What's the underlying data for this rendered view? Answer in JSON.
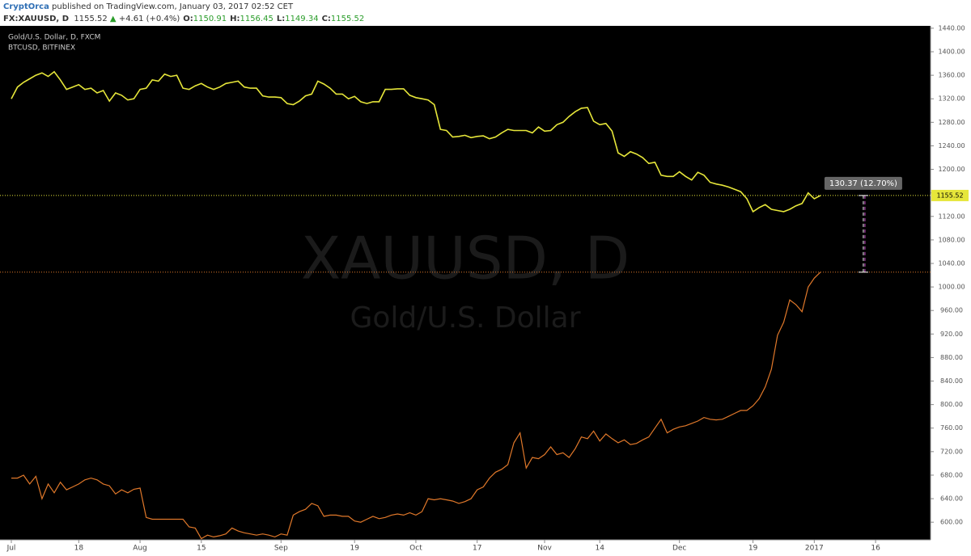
{
  "header": {
    "author": "CryptOrca",
    "published": "published on TradingView.com, January 03, 2017 02:52 CET",
    "symbol": "FX:XAUUSD, D",
    "last": "1155.52",
    "arrow": "▲",
    "change": "+4.61 (+0.4%)",
    "ohlc": [
      {
        "label": "O:",
        "value": "1150.91"
      },
      {
        "label": "H:",
        "value": "1156.45"
      },
      {
        "label": "L:",
        "value": "1149.34"
      },
      {
        "label": "C:",
        "value": "1155.52"
      }
    ]
  },
  "chart_data": {
    "type": "line",
    "watermark": [
      "XAUUSD, D",
      "Gold/U.S. Dollar"
    ],
    "annotation": "130.37 (12.70%)",
    "categories": [
      "Jul",
      null,
      null,
      null,
      null,
      null,
      null,
      null,
      null,
      null,
      null,
      "18",
      null,
      null,
      null,
      null,
      null,
      null,
      null,
      null,
      null,
      "Aug",
      null,
      null,
      null,
      null,
      null,
      null,
      null,
      null,
      null,
      "15",
      null,
      null,
      null,
      null,
      null,
      null,
      null,
      null,
      null,
      null,
      null,
      null,
      "Sep",
      null,
      null,
      null,
      null,
      null,
      null,
      null,
      null,
      null,
      null,
      null,
      "19",
      null,
      null,
      null,
      null,
      null,
      null,
      null,
      null,
      null,
      "Oct",
      null,
      null,
      null,
      null,
      null,
      null,
      null,
      null,
      null,
      "17",
      null,
      null,
      null,
      null,
      null,
      null,
      null,
      null,
      null,
      null,
      "Nov",
      null,
      null,
      null,
      null,
      null,
      null,
      null,
      null,
      "14",
      null,
      null,
      null,
      null,
      null,
      null,
      null,
      null,
      null,
      null,
      null,
      null,
      "Dec",
      null,
      null,
      null,
      null,
      null,
      null,
      null,
      null,
      null,
      null,
      null,
      "19",
      null,
      null,
      null,
      null,
      null,
      null,
      null,
      null,
      null,
      "2017",
      null,
      null,
      null,
      null,
      null,
      null,
      null,
      null,
      null,
      "16"
    ],
    "series": [
      {
        "name": "Gold/U.S. Dollar, D, FXCM",
        "color": "#e6e63a",
        "values": [
          1320,
          1340,
          1348,
          1354,
          1360,
          1364,
          1358,
          1366,
          1352,
          1336,
          1340,
          1344,
          1336,
          1338,
          1330,
          1334,
          1316,
          1330,
          1326,
          1318,
          1320,
          1336,
          1338,
          1352,
          1350,
          1362,
          1358,
          1360,
          1338,
          1336,
          1342,
          1346,
          1340,
          1336,
          1340,
          1346,
          1348,
          1350,
          1340,
          1338,
          1338,
          1325,
          1323,
          1323,
          1322,
          1312,
          1310,
          1316,
          1325,
          1328,
          1350,
          1345,
          1338,
          1328,
          1328,
          1320,
          1324,
          1315,
          1312,
          1315,
          1315,
          1336,
          1336,
          1337,
          1337,
          1326,
          1322,
          1320,
          1318,
          1310,
          1268,
          1266,
          1255,
          1256,
          1258,
          1254,
          1256,
          1257,
          1252,
          1255,
          1262,
          1268,
          1266,
          1266,
          1266,
          1262,
          1272,
          1265,
          1266,
          1276,
          1280,
          1290,
          1298,
          1304,
          1305,
          1282,
          1276,
          1278,
          1265,
          1228,
          1222,
          1230,
          1226,
          1220,
          1210,
          1212,
          1190,
          1188,
          1188,
          1196,
          1188,
          1182,
          1195,
          1190,
          1178,
          1175,
          1173,
          1170,
          1166,
          1162,
          1150,
          1128,
          1135,
          1140,
          1132,
          1130,
          1128,
          1132,
          1138,
          1142,
          1160,
          1150,
          1155.52,
          null,
          null,
          null,
          null,
          null,
          null,
          null,
          null,
          null
        ]
      },
      {
        "name": "BTCUSD, BITFINEX",
        "color": "#e0782a",
        "values": [
          675,
          675,
          680,
          665,
          678,
          640,
          665,
          650,
          668,
          655,
          660,
          665,
          672,
          675,
          672,
          665,
          662,
          648,
          655,
          650,
          656,
          658,
          608,
          605,
          605,
          605,
          605,
          605,
          605,
          592,
          590,
          572,
          578,
          575,
          577,
          580,
          590,
          585,
          582,
          580,
          578,
          580,
          578,
          575,
          580,
          578,
          612,
          618,
          622,
          632,
          628,
          610,
          612,
          612,
          610,
          610,
          602,
          600,
          605,
          610,
          606,
          608,
          612,
          614,
          612,
          616,
          612,
          618,
          640,
          638,
          640,
          638,
          636,
          632,
          635,
          640,
          655,
          660,
          675,
          685,
          690,
          698,
          735,
          752,
          692,
          710,
          708,
          715,
          728,
          715,
          718,
          710,
          725,
          745,
          742,
          755,
          738,
          750,
          742,
          735,
          740,
          732,
          734,
          740,
          745,
          760,
          775,
          752,
          758,
          762,
          764,
          768,
          772,
          778,
          775,
          774,
          775,
          780,
          785,
          790,
          790,
          798,
          810,
          830,
          860,
          918,
          940,
          978,
          970,
          958,
          1000,
          1015,
          1025.15,
          null,
          null,
          null,
          null,
          null,
          null,
          null,
          null,
          null
        ]
      }
    ],
    "ylim": [
      570,
      1444
    ],
    "yticks": [
      {
        "value": 600,
        "label": "600.00"
      },
      {
        "value": 640,
        "label": "640.00"
      },
      {
        "value": 680,
        "label": "680.00"
      },
      {
        "value": 720,
        "label": "720.00"
      },
      {
        "value": 760,
        "label": "760.00"
      },
      {
        "value": 800,
        "label": "800.00"
      },
      {
        "value": 840,
        "label": "840.00"
      },
      {
        "value": 880,
        "label": "880.00"
      },
      {
        "value": 920,
        "label": "920.00"
      },
      {
        "value": 960,
        "label": "960.00"
      },
      {
        "value": 1000,
        "label": "1000.00"
      },
      {
        "value": 1040,
        "label": "1040.00"
      },
      {
        "value": 1080,
        "label": "1080.00"
      },
      {
        "value": 1120,
        "label": "1120.00"
      },
      {
        "value": 1160,
        "label": "1160.00"
      },
      {
        "value": 1200,
        "label": "1200.00"
      },
      {
        "value": 1240,
        "label": "1240.00"
      },
      {
        "value": 1280,
        "label": "1280.00"
      },
      {
        "value": 1320,
        "label": "1320.00"
      },
      {
        "value": 1360,
        "label": "1360.00"
      },
      {
        "value": 1400,
        "label": "1400.00"
      },
      {
        "value": 1440,
        "label": "1440.00"
      }
    ]
  }
}
